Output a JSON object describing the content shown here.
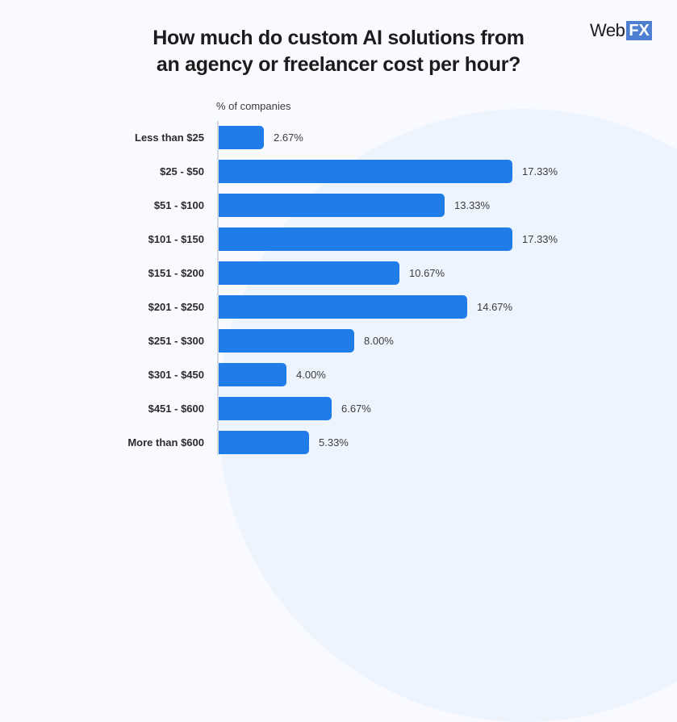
{
  "title": "How much do custom AI solutions from an agency or freelancer cost per hour?",
  "title_lines": [
    "How much do custom AI solutions from",
    "an agency or freelancer cost per hour?"
  ],
  "logo": {
    "web": "Web",
    "fx": "FX"
  },
  "colors": {
    "bar": "#207ce8",
    "background": "#f8faff",
    "logo_fx_bg": "#4f7fd1"
  },
  "chart_data": {
    "type": "bar",
    "orientation": "horizontal",
    "title": "How much do custom AI solutions from an agency or freelancer cost per hour?",
    "xlabel": "% of companies",
    "ylabel": "",
    "categories": [
      "Less than $25",
      "$25 - $50",
      "$51 - $100",
      "$101 - $150",
      "$151 - $200",
      "$201 - $250",
      "$251 - $300",
      "$301 - $450",
      "$451 - $600",
      "More than $600"
    ],
    "values": [
      2.67,
      17.33,
      13.33,
      17.33,
      10.67,
      14.67,
      8.0,
      4.0,
      6.67,
      5.33
    ],
    "labels": [
      "2.67%",
      "17.33%",
      "13.33%",
      "17.33%",
      "10.67%",
      "14.67%",
      "8.00%",
      "4.00%",
      "6.67%",
      "5.33%"
    ],
    "grid": false,
    "legend": null,
    "xlim": [
      0,
      17.33
    ]
  }
}
